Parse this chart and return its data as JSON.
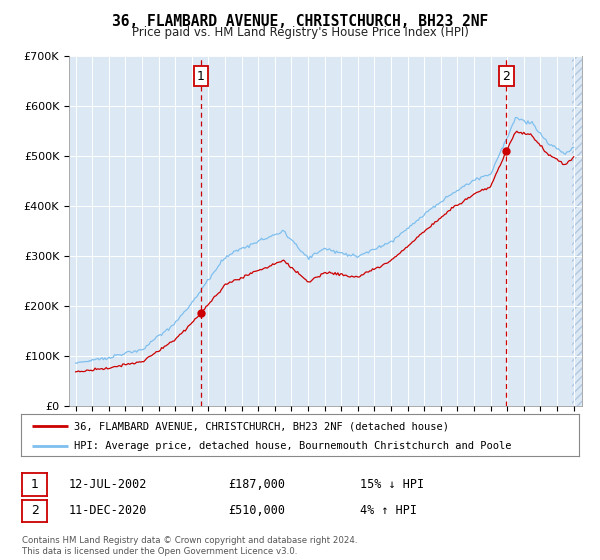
{
  "title": "36, FLAMBARD AVENUE, CHRISTCHURCH, BH23 2NF",
  "subtitle": "Price paid vs. HM Land Registry's House Price Index (HPI)",
  "legend_line1": "36, FLAMBARD AVENUE, CHRISTCHURCH, BH23 2NF (detached house)",
  "legend_line2": "HPI: Average price, detached house, Bournemouth Christchurch and Poole",
  "sale1_date": "12-JUL-2002",
  "sale1_price": 187000,
  "sale1_hpi_text": "15% ↓ HPI",
  "sale2_date": "11-DEC-2020",
  "sale2_price": 510000,
  "sale2_hpi_text": "4% ↑ HPI",
  "footer": "Contains HM Land Registry data © Crown copyright and database right 2024.\nThis data is licensed under the Open Government Licence v3.0.",
  "ylim": [
    0,
    700000
  ],
  "yticks": [
    0,
    100000,
    200000,
    300000,
    400000,
    500000,
    600000,
    700000
  ],
  "background_color": "#dce9f5",
  "hpi_color": "#7fbfee",
  "sale_color": "#cc0000",
  "vline_color": "#cc0000",
  "grid_color": "#ffffff",
  "sale1_year": 2002.53,
  "sale2_year": 2020.95
}
